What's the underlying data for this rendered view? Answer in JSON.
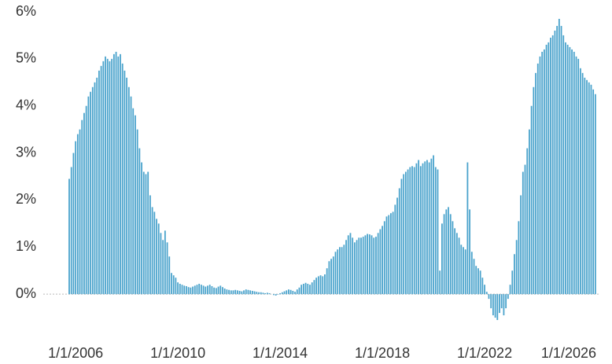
{
  "chart_data": {
    "type": "bar",
    "color": "#4aa3cc",
    "categories": [
      null,
      null,
      null,
      "1/1/2006",
      null,
      null,
      null,
      null,
      null,
      null,
      null,
      null,
      null,
      null,
      null,
      null,
      null,
      null,
      null,
      null,
      null,
      null,
      null,
      null,
      null,
      null,
      null,
      null,
      null,
      null,
      null,
      null,
      null,
      null,
      null,
      null,
      null,
      null,
      null,
      null,
      null,
      null,
      null,
      null,
      null,
      null,
      null,
      null,
      null,
      null,
      null,
      "1/1/2010",
      null,
      null,
      null,
      null,
      null,
      null,
      null,
      null,
      null,
      null,
      null,
      null,
      null,
      null,
      null,
      null,
      null,
      null,
      null,
      null,
      null,
      null,
      null,
      null,
      null,
      null,
      null,
      null,
      null,
      null,
      null,
      null,
      null,
      null,
      null,
      null,
      null,
      null,
      null,
      null,
      null,
      null,
      null,
      null,
      null,
      null,
      null,
      "1/1/2014",
      null,
      null,
      null,
      null,
      null,
      null,
      null,
      null,
      null,
      null,
      null,
      null,
      null,
      null,
      null,
      null,
      null,
      null,
      null,
      null,
      null,
      null,
      null,
      null,
      null,
      null,
      null,
      null,
      null,
      null,
      null,
      null,
      null,
      null,
      null,
      null,
      null,
      null,
      null,
      null,
      null,
      null,
      null,
      null,
      null,
      null,
      null,
      "1/1/2018",
      null,
      null,
      null,
      null,
      null,
      null,
      null,
      null,
      null,
      null,
      null,
      null,
      null,
      null,
      null,
      null,
      null,
      null,
      null,
      null,
      null,
      null,
      null,
      null,
      null,
      null,
      null,
      null,
      null,
      null,
      null,
      null,
      null,
      null,
      null,
      null,
      null,
      null,
      null,
      null,
      null,
      null,
      null,
      null,
      null,
      null,
      null,
      "1/1/2022",
      null,
      null,
      null,
      null,
      null,
      null,
      null,
      null,
      null,
      null,
      null,
      null,
      null,
      null,
      null,
      null,
      null,
      null,
      null,
      null,
      null,
      null,
      null,
      null,
      null,
      null,
      null,
      null,
      null,
      null,
      null,
      null,
      null,
      null,
      null,
      null,
      null,
      null,
      null,
      null,
      null,
      null,
      null,
      null,
      null,
      null,
      null,
      "1/1/2026",
      null,
      null,
      null,
      null
    ],
    "values": [
      2.45,
      2.7,
      3.0,
      3.25,
      3.4,
      3.5,
      3.7,
      3.85,
      4.0,
      4.2,
      4.3,
      4.4,
      4.5,
      4.6,
      4.75,
      4.85,
      4.95,
      5.05,
      5.0,
      4.95,
      5.0,
      5.1,
      5.15,
      5.05,
      5.1,
      4.9,
      4.75,
      4.6,
      4.4,
      4.2,
      3.95,
      3.8,
      3.5,
      3.1,
      2.8,
      2.6,
      2.55,
      2.6,
      2.1,
      1.85,
      1.75,
      1.6,
      1.5,
      1.3,
      1.15,
      1.35,
      1.1,
      0.8,
      0.45,
      0.4,
      0.35,
      0.25,
      0.22,
      0.2,
      0.18,
      0.17,
      0.15,
      0.14,
      0.16,
      0.18,
      0.2,
      0.22,
      0.2,
      0.18,
      0.16,
      0.18,
      0.2,
      0.17,
      0.14,
      0.13,
      0.16,
      0.18,
      0.15,
      0.12,
      0.1,
      0.09,
      0.08,
      0.08,
      0.09,
      0.08,
      0.07,
      0.06,
      0.08,
      0.1,
      0.09,
      0.08,
      0.07,
      0.06,
      0.05,
      0.04,
      0.04,
      0.03,
      0.02,
      0.03,
      0.02,
      0,
      -0.02,
      -0.03,
      -0.01,
      0.02,
      0.04,
      0.06,
      0.08,
      0.1,
      0.09,
      0.07,
      0.05,
      0.1,
      0.14,
      0.2,
      0.22,
      0.24,
      0.22,
      0.2,
      0.25,
      0.3,
      0.35,
      0.38,
      0.4,
      0.38,
      0.42,
      0.55,
      0.7,
      0.75,
      0.8,
      0.9,
      0.95,
      1.0,
      1.0,
      1.05,
      1.15,
      1.25,
      1.3,
      1.2,
      1.1,
      1.15,
      1.2,
      1.2,
      1.22,
      1.25,
      1.28,
      1.27,
      1.25,
      1.2,
      1.22,
      1.3,
      1.38,
      1.45,
      1.55,
      1.65,
      1.68,
      1.72,
      1.75,
      1.9,
      2.05,
      2.25,
      2.45,
      2.55,
      2.6,
      2.65,
      2.7,
      2.72,
      2.7,
      2.78,
      2.85,
      2.72,
      2.78,
      2.82,
      2.85,
      2.8,
      2.88,
      2.95,
      2.7,
      2.65,
      0.5,
      1.5,
      1.7,
      1.8,
      1.85,
      1.7,
      1.55,
      1.4,
      1.3,
      1.2,
      1.05,
      1.0,
      0.95,
      2.8,
      1.8,
      0.9,
      0.75,
      0.6,
      0.55,
      0.5,
      0.35,
      0.2,
      0.05,
      -0.1,
      -0.3,
      -0.45,
      -0.5,
      -0.55,
      -0.4,
      -0.3,
      -0.45,
      -0.3,
      -0.1,
      0.2,
      0.5,
      0.85,
      1.15,
      1.55,
      2.1,
      2.6,
      2.75,
      3.1,
      3.5,
      4.0,
      4.4,
      4.7,
      4.9,
      5.05,
      5.15,
      5.2,
      5.3,
      5.35,
      5.45,
      5.5,
      5.6,
      5.7,
      5.85,
      5.7,
      5.5,
      5.35,
      5.3,
      5.25,
      5.2,
      5.15,
      5.05,
      5.0,
      4.8,
      4.7,
      4.6,
      4.55,
      4.5,
      4.45,
      4.35,
      4.25
    ],
    "ylim": [
      -1,
      6
    ],
    "yticks": [
      {
        "value": 0,
        "label": "0%"
      },
      {
        "value": 1,
        "label": "1%"
      },
      {
        "value": 2,
        "label": "2%"
      },
      {
        "value": 3,
        "label": "3%"
      },
      {
        "value": 4,
        "label": "4%"
      },
      {
        "value": 5,
        "label": "5%"
      },
      {
        "value": 6,
        "label": "6%"
      }
    ],
    "grid": false
  }
}
